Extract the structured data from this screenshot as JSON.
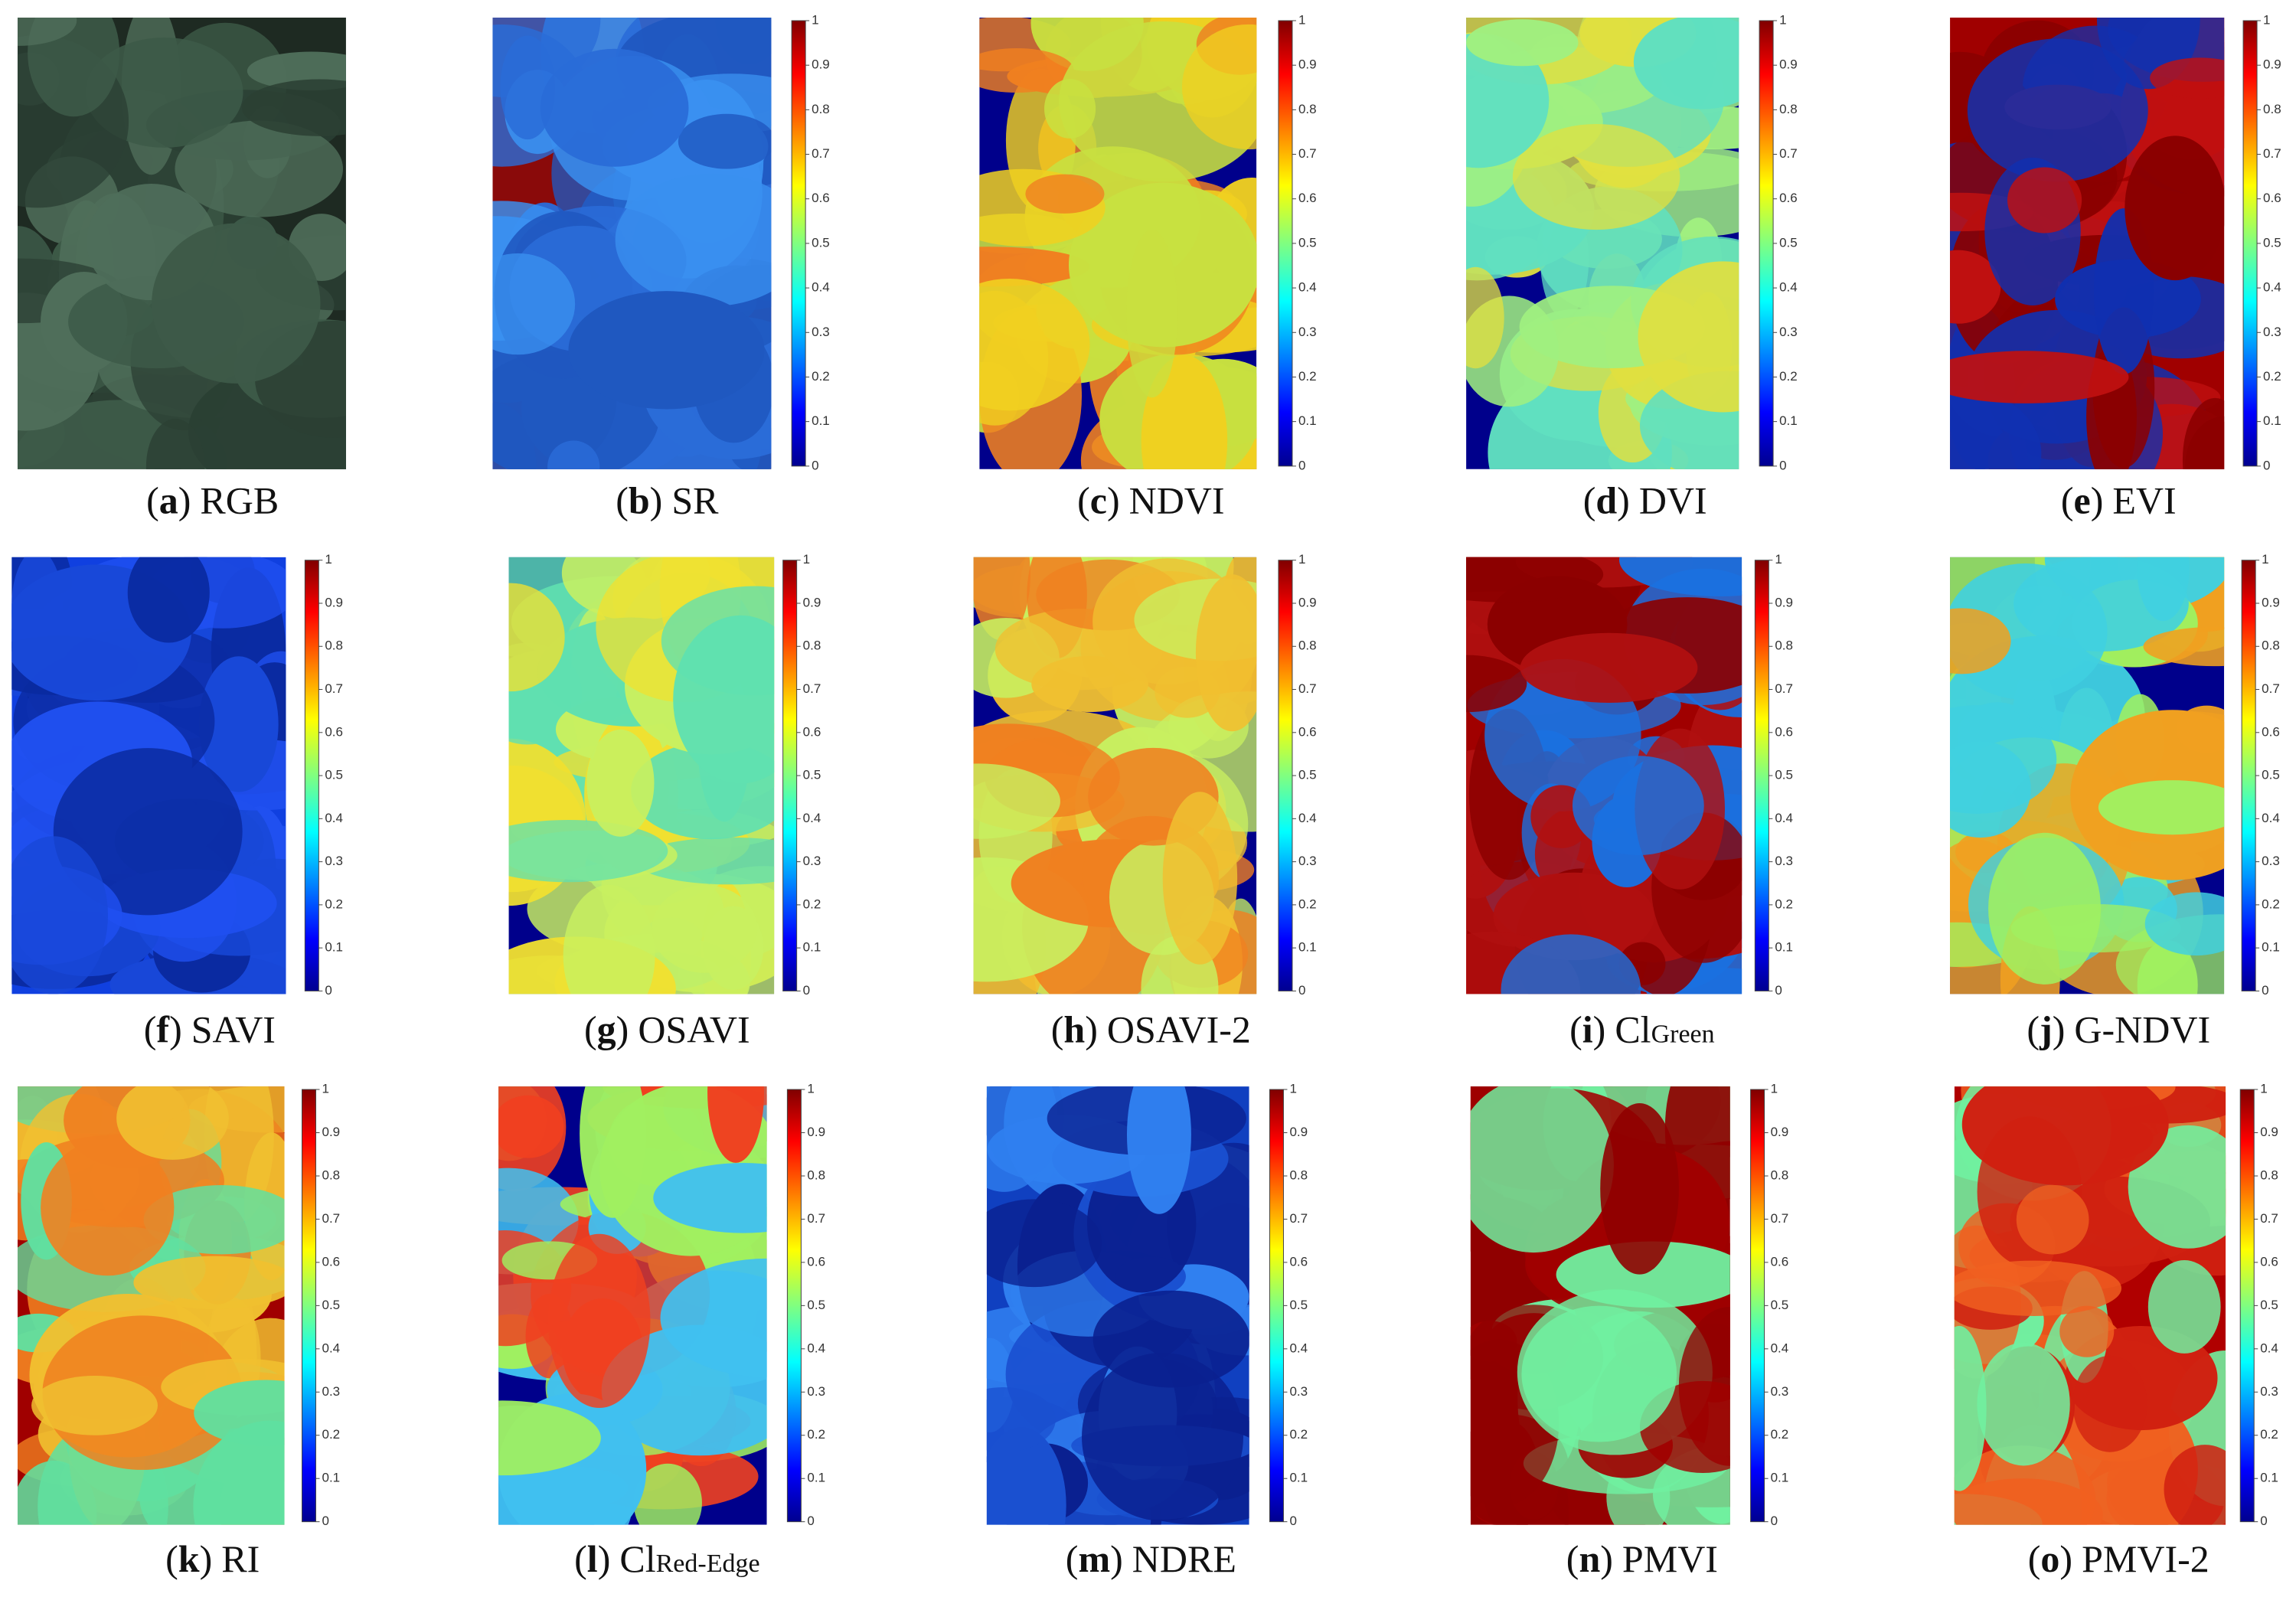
{
  "brackets": [
    "(",
    ")"
  ],
  "colorbar_ticks": [
    "0",
    "0.1",
    "0.2",
    "0.3",
    "0.4",
    "0.5",
    "0.6",
    "0.7",
    "0.8",
    "0.9",
    "1"
  ],
  "panels": [
    {
      "letter": "a",
      "label": "RGB"
    },
    {
      "letter": "b",
      "label": "SR"
    },
    {
      "letter": "c",
      "label": "NDVI"
    },
    {
      "letter": "d",
      "label": "DVI"
    },
    {
      "letter": "e",
      "label": "EVI"
    },
    {
      "letter": "f",
      "label": "SAVI"
    },
    {
      "letter": "g",
      "label": "OSAVI"
    },
    {
      "letter": "h",
      "label": "OSAVI-2"
    },
    {
      "letter": "i",
      "label": "Cl",
      "subscript": "Green"
    },
    {
      "letter": "j",
      "label": "G-NDVI"
    },
    {
      "letter": "k",
      "label": "RI"
    },
    {
      "letter": "l",
      "label": "Cl",
      "subscript": "Red-Edge"
    },
    {
      "letter": "m",
      "label": "NDRE"
    },
    {
      "letter": "n",
      "label": "PMVI"
    },
    {
      "letter": "o",
      "label": "PMVI-2"
    }
  ]
}
